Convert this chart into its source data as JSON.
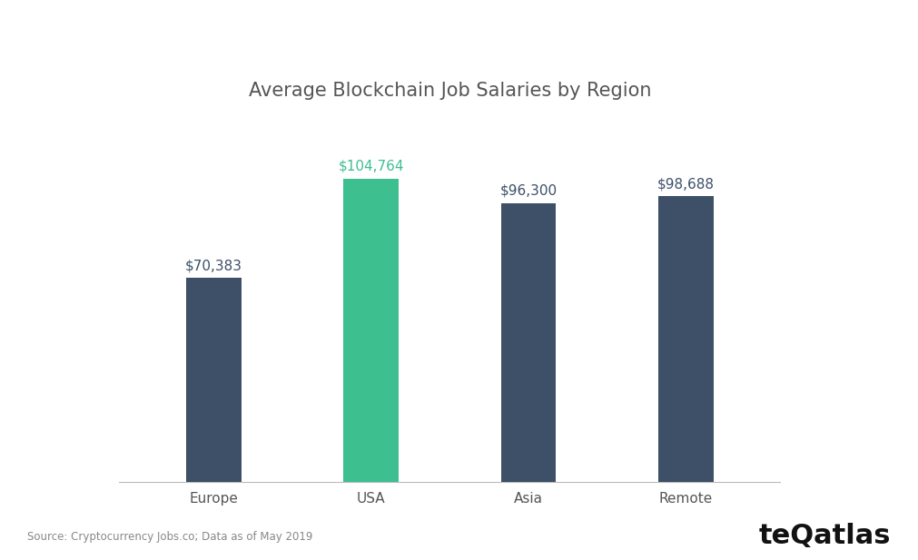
{
  "title": "Average Blockchain Job Salaries by Region",
  "categories": [
    "Europe",
    "USA",
    "Asia",
    "Remote"
  ],
  "values": [
    70383,
    104764,
    96300,
    98688
  ],
  "bar_colors": [
    "#3d5068",
    "#3dbf90",
    "#3d5068",
    "#3d5068"
  ],
  "label_colors": [
    "#3d5068",
    "#3dbf90",
    "#3d5068",
    "#3d5068"
  ],
  "labels": [
    "$70,383",
    "$104,764",
    "$96,300",
    "$98,688"
  ],
  "source_text": "Source: Cryptocurrency Jobs.co; Data as of May 2019",
  "brand_text": "teQatlas",
  "background_color": "#ffffff",
  "title_fontsize": 15,
  "label_fontsize": 11,
  "tick_fontsize": 11,
  "source_fontsize": 8.5,
  "brand_fontsize": 22,
  "ylim": [
    0,
    120000
  ],
  "bar_width": 0.35
}
